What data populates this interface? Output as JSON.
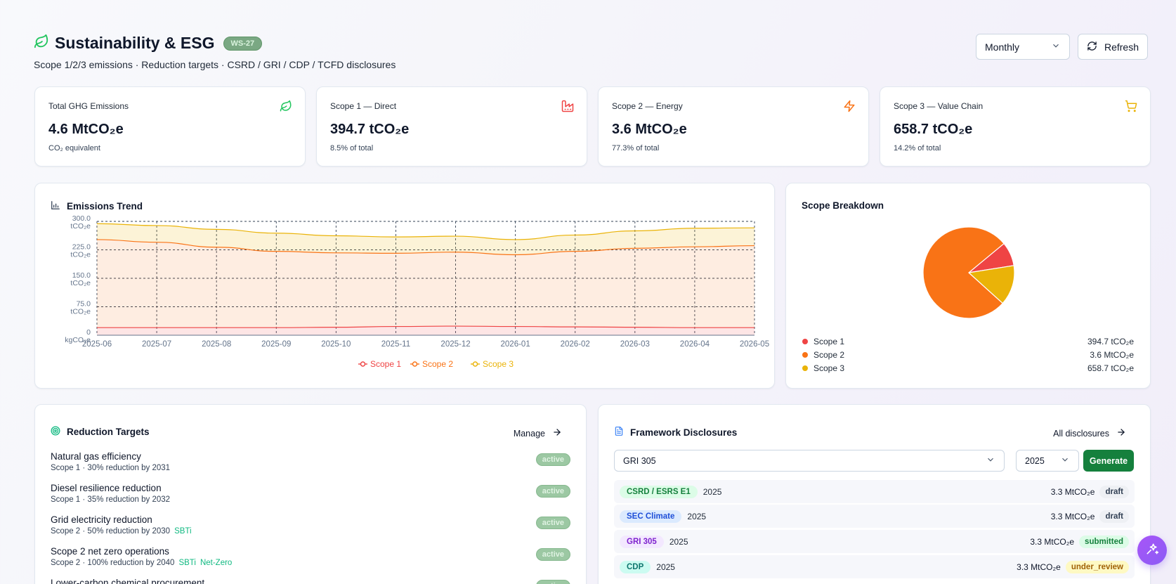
{
  "header": {
    "title": "Sustainability & ESG",
    "badge": "WS-27",
    "subtitle": "Scope 1/2/3 emissions · Reduction targets · CSRD / GRI / CDP / TCFD disclosures"
  },
  "controls": {
    "period": "Monthly",
    "refresh_label": "Refresh"
  },
  "kpis": [
    {
      "label": "Total GHG Emissions",
      "value": "4.6 MtCO₂e",
      "sub": "CO₂ equivalent",
      "icon": "leaf-icon",
      "color": "#22c55e"
    },
    {
      "label": "Scope 1 — Direct",
      "value": "394.7 tCO₂e",
      "sub": "8.5% of total",
      "icon": "factory-icon",
      "color": "#ef4444"
    },
    {
      "label": "Scope 2 — Energy",
      "value": "3.6 MtCO₂e",
      "sub": "77.3% of total",
      "icon": "zap-icon",
      "color": "#f97316"
    },
    {
      "label": "Scope 3 — Value Chain",
      "value": "658.7 tCO₂e",
      "sub": "14.2% of total",
      "icon": "cart-icon",
      "color": "#eab308"
    }
  ],
  "trend": {
    "title": "Emissions Trend"
  },
  "breakdown": {
    "title": "Scope Breakdown",
    "items": [
      {
        "label": "Scope 1",
        "value": "394.7 tCO₂e",
        "color": "#ef4444"
      },
      {
        "label": "Scope 2",
        "value": "3.6 MtCO₂e",
        "color": "#f97316"
      },
      {
        "label": "Scope 3",
        "value": "658.7 tCO₂e",
        "color": "#eab308"
      }
    ]
  },
  "chart_data": [
    {
      "type": "area",
      "title": "Emissions Trend",
      "x": [
        "2025-06",
        "2025-07",
        "2025-08",
        "2025-09",
        "2025-10",
        "2025-11",
        "2025-12",
        "2026-01",
        "2026-02",
        "2026-03",
        "2026-04",
        "2026-05"
      ],
      "y_ticks": [
        "300.0 tCO₂e",
        "225.0 tCO₂e",
        "150.0 tCO₂e",
        "75.0 tCO₂e",
        "0 kgCO₂e"
      ],
      "ylim": [
        0,
        300
      ],
      "stacked": true,
      "grid": true,
      "legend_position": "bottom",
      "series": [
        {
          "name": "Scope 1",
          "color": "#ef4444",
          "values": [
            20,
            20,
            20,
            20,
            21,
            23,
            24,
            23,
            22,
            21,
            20,
            20
          ]
        },
        {
          "name": "Scope 2",
          "color": "#f97316",
          "values": [
            232,
            225,
            212,
            201,
            196,
            193,
            195,
            189,
            199,
            208,
            213,
            216
          ]
        },
        {
          "name": "Scope 3",
          "color": "#eab308",
          "values": [
            42,
            44,
            47,
            48,
            45,
            43,
            42,
            40,
            43,
            46,
            49,
            47
          ]
        }
      ]
    },
    {
      "type": "pie",
      "title": "Scope Breakdown",
      "labels": [
        "Scope 1",
        "Scope 2",
        "Scope 3"
      ],
      "values": [
        8.5,
        77.3,
        14.2
      ],
      "colors": [
        "#ef4444",
        "#f97316",
        "#eab308"
      ]
    }
  ],
  "targets": {
    "title": "Reduction Targets",
    "manage_label": "Manage",
    "items": [
      {
        "name": "Natural gas efficiency",
        "meta": "Scope 1 · 30% reduction by 2031",
        "tags": [],
        "status": "active"
      },
      {
        "name": "Diesel resilience reduction",
        "meta": "Scope 1 · 35% reduction by 2032",
        "tags": [],
        "status": "active"
      },
      {
        "name": "Grid electricity reduction",
        "meta": "Scope 2 · 50% reduction by 2030",
        "tags": [
          "SBTi"
        ],
        "status": "active"
      },
      {
        "name": "Scope 2 net zero operations",
        "meta": "Scope 2 · 100% reduction by 2040",
        "tags": [
          "SBTi",
          "Net-Zero"
        ],
        "status": "active"
      },
      {
        "name": "Lower-carbon chemical procurement",
        "meta": "",
        "tags": [],
        "status": "active"
      }
    ]
  },
  "disclosures": {
    "title": "Framework Disclosures",
    "all_label": "All disclosures",
    "framework_select": "GRI 305",
    "year_select": "2025",
    "generate_label": "Generate",
    "rows": [
      {
        "framework": "CSRD / ESRS E1",
        "year": "2025",
        "value": "3.3 MtCO₂e",
        "status": "draft",
        "bg": "#dcfce7",
        "fg": "#15803d",
        "sbg": "#eef0f4",
        "sfg": "#334155"
      },
      {
        "framework": "SEC Climate",
        "year": "2025",
        "value": "3.3 MtCO₂e",
        "status": "draft",
        "bg": "#dbeafe",
        "fg": "#1d4ed8",
        "sbg": "#eef0f4",
        "sfg": "#334155"
      },
      {
        "framework": "GRI 305",
        "year": "2025",
        "value": "3.3 MtCO₂e",
        "status": "submitted",
        "bg": "#f3e8ff",
        "fg": "#7e22ce",
        "sbg": "#dcfce7",
        "sfg": "#15803d"
      },
      {
        "framework": "CDP",
        "year": "2025",
        "value": "3.3 MtCO₂e",
        "status": "under_review",
        "bg": "#ccfbf1",
        "fg": "#0f766e",
        "sbg": "#fef9c3",
        "sfg": "#a16207"
      }
    ]
  }
}
